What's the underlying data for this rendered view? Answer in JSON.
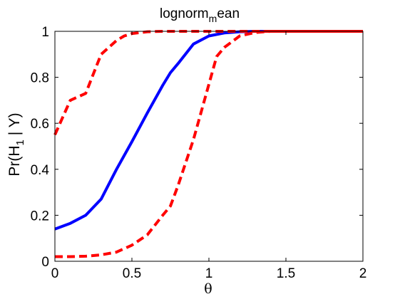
{
  "chart_data": {
    "type": "line",
    "title": "lognorm",
    "title_sub": "m",
    "title_rest": "ean",
    "xlabel": "θ",
    "ylabel": {
      "pre": "Pr(H",
      "sub": "1",
      "post": " | Y)"
    },
    "xlim": [
      0,
      2
    ],
    "ylim": [
      0,
      1
    ],
    "x_ticks": [
      0,
      0.5,
      1,
      1.5,
      2
    ],
    "x_tick_labels": [
      "0",
      "0.5",
      "1",
      "1.5",
      "2"
    ],
    "y_ticks": [
      0,
      0.2,
      0.4,
      0.6,
      0.8,
      1
    ],
    "y_tick_labels": [
      "0",
      "0.2",
      "0.4",
      "0.6",
      "0.8",
      "1"
    ],
    "grid": false,
    "series": [
      {
        "style": "solid",
        "color": "#0000ff",
        "x": [
          0,
          0.1,
          0.2,
          0.3,
          0.4,
          0.5,
          0.6,
          0.7,
          0.75,
          0.8,
          0.9,
          1.0,
          1.1,
          1.2,
          1.3,
          1.4,
          1.5,
          1.6,
          1.8,
          2.0
        ],
        "y": [
          0.14,
          0.165,
          0.2,
          0.27,
          0.4,
          0.52,
          0.645,
          0.765,
          0.82,
          0.86,
          0.945,
          0.98,
          0.993,
          0.998,
          1.0,
          1.0,
          1.0,
          1.0,
          1.0,
          1.0
        ]
      },
      {
        "style": "dashed",
        "color": "#ff0000",
        "x": [
          0,
          0.1,
          0.2,
          0.3,
          0.4,
          0.45,
          0.5,
          0.6,
          0.7,
          0.8,
          1.0,
          1.2,
          1.4,
          1.6,
          1.8,
          2.0
        ],
        "y": [
          0.55,
          0.7,
          0.73,
          0.9,
          0.96,
          0.98,
          0.99,
          0.998,
          1.0,
          1.0,
          1.0,
          1.0,
          1.0,
          1.0,
          1.0,
          1.0
        ]
      },
      {
        "style": "dashed",
        "color": "#ff0000",
        "x": [
          0,
          0.1,
          0.2,
          0.3,
          0.4,
          0.5,
          0.6,
          0.7,
          0.75,
          0.8,
          0.9,
          1.0,
          1.05,
          1.1,
          1.2,
          1.3,
          1.4,
          1.6,
          1.8,
          2.0
        ],
        "y": [
          0.02,
          0.02,
          0.022,
          0.028,
          0.04,
          0.07,
          0.115,
          0.2,
          0.24,
          0.33,
          0.53,
          0.77,
          0.89,
          0.93,
          0.98,
          0.995,
          1.0,
          1.0,
          1.0,
          1.0
        ]
      }
    ]
  }
}
